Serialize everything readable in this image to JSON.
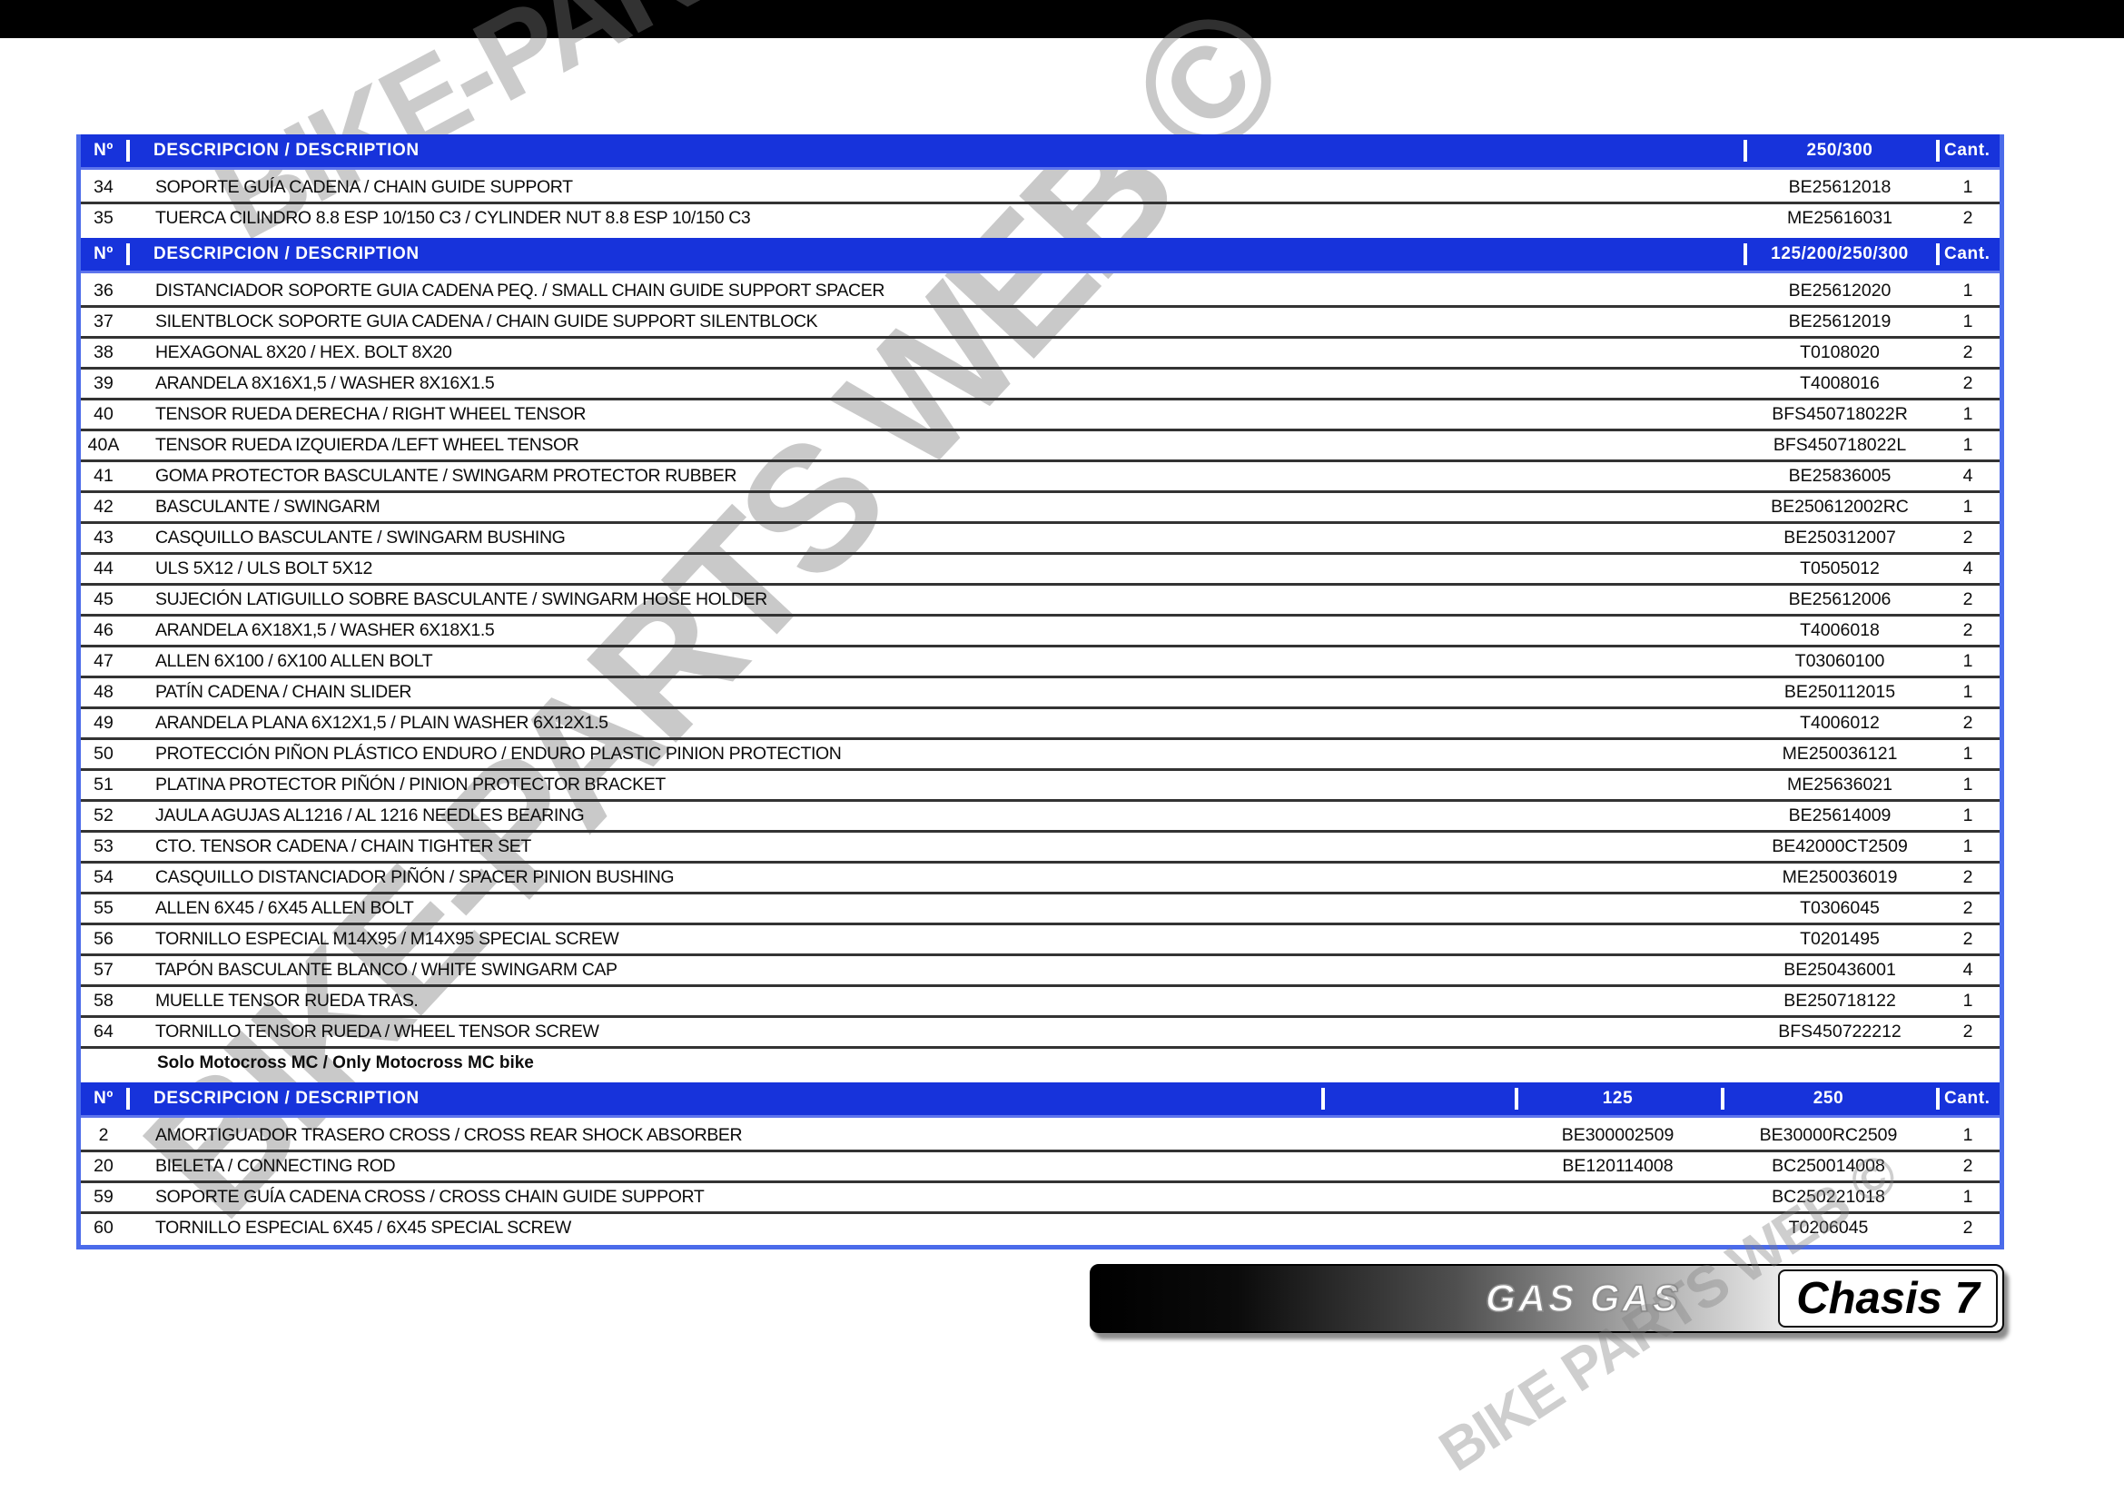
{
  "page": {
    "watermark_main": "BIKE-PARTS WEB ©",
    "watermark_small": "BIKE PARTS WEB ©",
    "colors": {
      "header_blue": "#1733DB",
      "table_border_blue": "#4B6BEA",
      "row_line": "#333333"
    }
  },
  "table": {
    "sections": [
      {
        "header": {
          "num": "Nº",
          "desc": "DESCRIPCION / DESCRIPTION",
          "columns": [
            "250/300"
          ],
          "cant": "Cant."
        },
        "rows": [
          {
            "num": "34",
            "desc": "SOPORTE GUÍA CADENA / CHAIN GUIDE SUPPORT",
            "parts": [
              "BE25612018"
            ],
            "qty": "1"
          },
          {
            "num": "35",
            "desc": "TUERCA CILINDRO 8.8 ESP 10/150 C3 / CYLINDER NUT 8.8 ESP 10/150 C3",
            "parts": [
              "ME25616031"
            ],
            "qty": "2"
          }
        ]
      },
      {
        "header": {
          "num": "Nº",
          "desc": "DESCRIPCION / DESCRIPTION",
          "columns": [
            "125/200/250/300"
          ],
          "cant": "Cant."
        },
        "rows": [
          {
            "num": "36",
            "desc": "DISTANCIADOR SOPORTE GUIA CADENA PEQ. / SMALL CHAIN GUIDE SUPPORT SPACER",
            "parts": [
              "BE25612020"
            ],
            "qty": "1"
          },
          {
            "num": "37",
            "desc": "SILENTBLOCK SOPORTE GUIA CADENA / CHAIN GUIDE SUPPORT SILENTBLOCK",
            "parts": [
              "BE25612019"
            ],
            "qty": "1"
          },
          {
            "num": "38",
            "desc": "HEXAGONAL 8X20 / HEX. BOLT 8X20",
            "parts": [
              "T0108020"
            ],
            "qty": "2"
          },
          {
            "num": "39",
            "desc": "ARANDELA 8X16X1,5 / WASHER 8X16X1.5",
            "parts": [
              "T4008016"
            ],
            "qty": "2"
          },
          {
            "num": "40",
            "desc": "TENSOR RUEDA DERECHA / RIGHT WHEEL TENSOR",
            "parts": [
              "BFS450718022R"
            ],
            "qty": "1"
          },
          {
            "num": "40A",
            "desc": "TENSOR RUEDA IZQUIERDA /LEFT WHEEL TENSOR",
            "parts": [
              "BFS450718022L"
            ],
            "qty": "1"
          },
          {
            "num": "41",
            "desc": "GOMA PROTECTOR BASCULANTE / SWINGARM PROTECTOR RUBBER",
            "parts": [
              "BE25836005"
            ],
            "qty": "4"
          },
          {
            "num": "42",
            "desc": "BASCULANTE / SWINGARM",
            "parts": [
              "BE250612002RC"
            ],
            "qty": "1"
          },
          {
            "num": "43",
            "desc": "CASQUILLO BASCULANTE / SWINGARM BUSHING",
            "parts": [
              "BE250312007"
            ],
            "qty": "2"
          },
          {
            "num": "44",
            "desc": "ULS 5X12 / ULS BOLT 5X12",
            "parts": [
              "T0505012"
            ],
            "qty": "4"
          },
          {
            "num": "45",
            "desc": "SUJECIÓN LATIGUILLO SOBRE BASCULANTE / SWINGARM HOSE HOLDER",
            "parts": [
              "BE25612006"
            ],
            "qty": "2"
          },
          {
            "num": "46",
            "desc": "ARANDELA 6X18X1,5 / WASHER 6X18X1.5",
            "parts": [
              "T4006018"
            ],
            "qty": "2"
          },
          {
            "num": "47",
            "desc": "ALLEN 6X100 / 6X100 ALLEN BOLT",
            "parts": [
              "T03060100"
            ],
            "qty": "1"
          },
          {
            "num": "48",
            "desc": "PATÍN CADENA / CHAIN SLIDER",
            "parts": [
              "BE250112015"
            ],
            "qty": "1"
          },
          {
            "num": "49",
            "desc": "ARANDELA PLANA 6X12X1,5 / PLAIN WASHER 6X12X1.5",
            "parts": [
              "T4006012"
            ],
            "qty": "2"
          },
          {
            "num": "50",
            "desc": "PROTECCIÓN PIÑON PLÁSTICO ENDURO / ENDURO PLASTIC PINION PROTECTION",
            "parts": [
              "ME250036121"
            ],
            "qty": "1"
          },
          {
            "num": "51",
            "desc": "PLATINA PROTECTOR PIÑÓN / PINION PROTECTOR BRACKET",
            "parts": [
              "ME25636021"
            ],
            "qty": "1"
          },
          {
            "num": "52",
            "desc": "JAULA AGUJAS AL1216 / AL 1216 NEEDLES BEARING",
            "parts": [
              "BE25614009"
            ],
            "qty": "1"
          },
          {
            "num": "53",
            "desc": "CTO. TENSOR CADENA / CHAIN TIGHTER SET",
            "parts": [
              "BE42000CT2509"
            ],
            "qty": "1"
          },
          {
            "num": "54",
            "desc": "CASQUILLO DISTANCIADOR PIÑÓN / SPACER PINION BUSHING",
            "parts": [
              "ME250036019"
            ],
            "qty": "2"
          },
          {
            "num": "55",
            "desc": "ALLEN 6X45 / 6X45 ALLEN BOLT",
            "parts": [
              "T0306045"
            ],
            "qty": "2"
          },
          {
            "num": "56",
            "desc": "TORNILLO ESPECIAL M14X95 / M14X95 SPECIAL SCREW",
            "parts": [
              "T0201495"
            ],
            "qty": "2"
          },
          {
            "num": "57",
            "desc": "TAPÓN BASCULANTE BLANCO / WHITE SWINGARM CAP",
            "parts": [
              "BE250436001"
            ],
            "qty": "4"
          },
          {
            "num": "58",
            "desc": "MUELLE TENSOR RUEDA TRAS.",
            "parts": [
              "BE250718122"
            ],
            "qty": "1"
          },
          {
            "num": "64",
            "desc": "TORNILLO TENSOR  RUEDA / WHEEL TENSOR SCREW",
            "parts": [
              "BFS450722212"
            ],
            "qty": "2"
          }
        ],
        "note": "Solo Motocross MC / Only Motocross MC bike"
      },
      {
        "header": {
          "num": "Nº",
          "desc": "DESCRIPCION / DESCRIPTION",
          "columns": [
            "125",
            "250"
          ],
          "cant": "Cant."
        },
        "rows": [
          {
            "num": "2",
            "desc": "AMORTIGUADOR TRASERO CROSS / CROSS REAR SHOCK ABSORBER",
            "parts": [
              "BE300002509",
              "BE30000RC2509"
            ],
            "qty": "1"
          },
          {
            "num": "20",
            "desc": "BIELETA / CONNECTING ROD",
            "parts": [
              "BE120114008",
              "BC250014008"
            ],
            "qty": "2"
          },
          {
            "num": "59",
            "desc": "SOPORTE GUÍA CADENA CROSS / CROSS CHAIN GUIDE SUPPORT",
            "parts": [
              "",
              "BC250221018"
            ],
            "qty": "1"
          },
          {
            "num": "60",
            "desc": "TORNILLO ESPECIAL 6X45 / 6X45 SPECIAL SCREW",
            "parts": [
              "",
              "T0206045"
            ],
            "qty": "2"
          }
        ]
      }
    ]
  },
  "footer": {
    "brand": "GAS GAS",
    "plate": "Chasis 7"
  }
}
